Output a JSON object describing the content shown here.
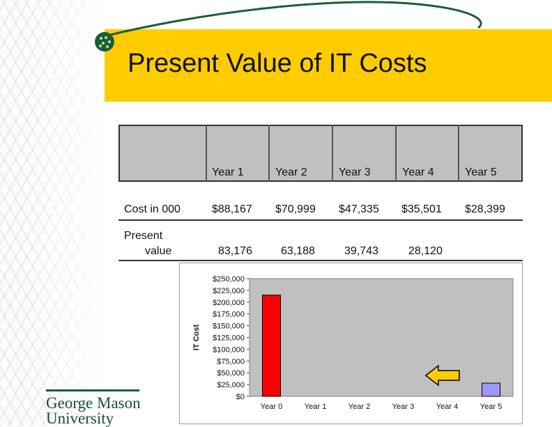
{
  "slide": {
    "title": "Present Value of IT Costs"
  },
  "table": {
    "columns": [
      "Year 1",
      "Year 2",
      "Year 3",
      "Year 4",
      "Year 5"
    ],
    "rows": [
      {
        "label": "Cost in 000",
        "values": [
          "$88,167",
          "$70,999",
          "$47,335",
          "$35,501",
          "$28,399"
        ]
      },
      {
        "label_line1": "Present",
        "label_line2": "value",
        "values": [
          "83,176",
          "63,188",
          "39,743",
          "28,120",
          ""
        ]
      }
    ]
  },
  "chart_data": {
    "type": "bar",
    "categories": [
      "Year 0",
      "Year 1",
      "Year 2",
      "Year 3",
      "Year 4",
      "Year 5"
    ],
    "values": [
      215000,
      0,
      0,
      0,
      0,
      28000
    ],
    "bar_colors": [
      "#ff0000",
      null,
      null,
      null,
      null,
      "#9999ff"
    ],
    "title": "",
    "xlabel": "",
    "ylabel": "IT Cost",
    "ylim": [
      0,
      250000
    ],
    "yticks": [
      "$0",
      "$25,000",
      "$50,000",
      "$75,000",
      "$100,000",
      "$125,000",
      "$150,000",
      "$175,000",
      "$200,000",
      "$225,000",
      "$250,000"
    ],
    "plot_area_color": "#c0c0c0",
    "annotation_arrow": "left-pointing yellow arrow near Year 4",
    "grid": false,
    "legend": "none"
  },
  "logo": {
    "line1": "George Mason",
    "line2": "University"
  },
  "colors": {
    "title_band": "#ffcc00",
    "accent_green": "#1b5e35"
  }
}
